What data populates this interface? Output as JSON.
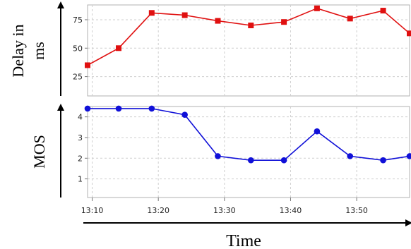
{
  "chart_data": [
    {
      "type": "line",
      "ylabel_line1": "Delay in",
      "ylabel_line2": "ms",
      "ylim": [
        8,
        88
      ],
      "yticks": [
        25,
        50,
        75
      ],
      "xlim": [
        9.3,
        58.0
      ],
      "x": [
        9.3,
        14,
        19,
        24,
        29,
        34,
        39,
        44,
        49,
        54,
        58
      ],
      "series": [
        {
          "values": [
            35,
            50,
            81,
            79,
            74,
            70,
            73,
            85,
            76,
            83,
            63
          ],
          "color": "#e01010",
          "marker": "square"
        }
      ],
      "grid": true
    },
    {
      "type": "line",
      "ylabel": "MOS",
      "ylim": [
        0.1,
        4.5
      ],
      "yticks": [
        1,
        2,
        3,
        4
      ],
      "xlim": [
        9.3,
        58.0
      ],
      "x": [
        9.3,
        14,
        19,
        24,
        29,
        34,
        39,
        44,
        49,
        54,
        58
      ],
      "xtick_values": [
        10,
        20,
        30,
        40,
        50
      ],
      "xtick_labels": [
        "13:10",
        "13:20",
        "13:30",
        "13:40",
        "13:50"
      ],
      "series": [
        {
          "values": [
            4.4,
            4.4,
            4.4,
            4.1,
            2.1,
            1.9,
            1.9,
            3.3,
            2.1,
            1.9,
            2.1
          ],
          "color": "#1010d8",
          "marker": "circle"
        }
      ],
      "grid": true,
      "xlabel": "Time"
    }
  ]
}
